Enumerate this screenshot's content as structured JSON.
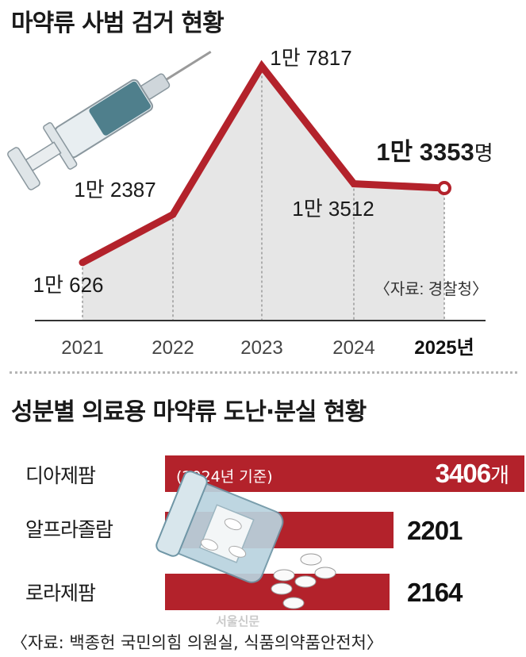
{
  "title_top": "마약류 사범 검거 현황",
  "title_bottom": "성분별 의료용 마약류 도난·분실 현황",
  "chart_data": [
    {
      "type": "line",
      "title": "마약류 사범 검거 현황",
      "categories": [
        "2021",
        "2022",
        "2023",
        "2024",
        "2025"
      ],
      "x_tick_labels": [
        "2021",
        "2022",
        "2023",
        "2024",
        "2025년"
      ],
      "values": [
        10626,
        12387,
        17817,
        13512,
        13353
      ],
      "data_labels": [
        "1만 626",
        "1만 2387",
        "1만 7817",
        "1만 3512",
        "1만 3353"
      ],
      "last_label_unit": "명",
      "ylim": [
        8500,
        18500
      ],
      "source": "〈자료: 경찰청〉",
      "line_color": "#b3222b",
      "area_color": "#e6e6e6"
    },
    {
      "type": "bar",
      "title": "성분별 의료용 마약류 도난·분실 현황",
      "categories": [
        "디아제팜",
        "알프라졸람",
        "로라제팜"
      ],
      "values": [
        3406,
        2201,
        2164
      ],
      "value_labels": [
        "3406",
        "2201",
        "2164"
      ],
      "first_value_unit": "개",
      "note": "(2024년 기준)",
      "source": "〈자료: 백종헌 국민의힘 의원실, 식품의약품안전처〉",
      "bar_color": "#b3222b"
    }
  ],
  "watermark": "서울신문"
}
